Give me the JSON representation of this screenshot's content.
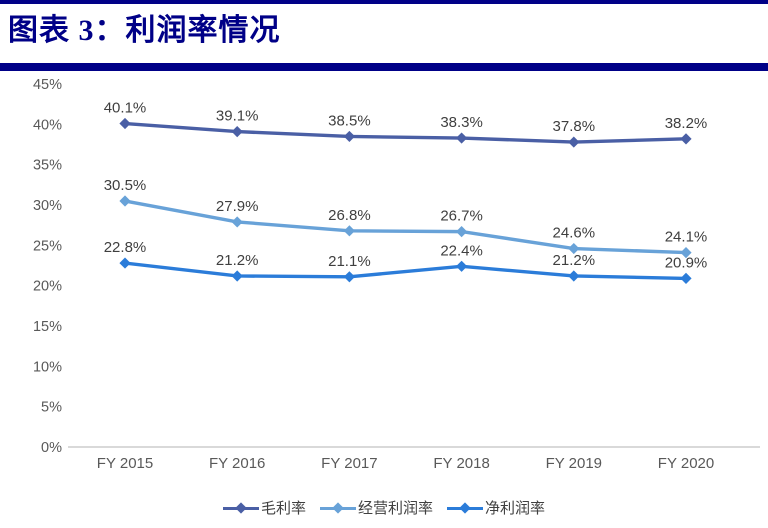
{
  "header": {
    "title": "图表 3：利润率情况",
    "accent_color": "#000087"
  },
  "chart_data": {
    "type": "line",
    "title": "利润率情况",
    "categories": [
      "FY 2015",
      "FY 2016",
      "FY 2017",
      "FY 2018",
      "FY 2019",
      "FY 2020"
    ],
    "series": [
      {
        "name": "毛利率",
        "color": "#4A5FA5",
        "values": [
          40.1,
          39.1,
          38.5,
          38.3,
          37.8,
          38.2
        ],
        "labels": [
          "40.1%",
          "39.1%",
          "38.5%",
          "38.3%",
          "37.8%",
          "38.2%"
        ]
      },
      {
        "name": "经营利润率",
        "color": "#68A2D8",
        "values": [
          30.5,
          27.9,
          26.8,
          26.7,
          24.6,
          24.1
        ],
        "labels": [
          "30.5%",
          "27.9%",
          "26.8%",
          "26.7%",
          "24.6%",
          "24.1%"
        ]
      },
      {
        "name": "净利润率",
        "color": "#2B7CD9",
        "values": [
          22.8,
          21.2,
          21.1,
          22.4,
          21.2,
          20.9
        ],
        "labels": [
          "22.8%",
          "21.2%",
          "21.1%",
          "22.4%",
          "21.2%",
          "20.9%"
        ]
      }
    ],
    "y_ticks": {
      "values": [
        0,
        5,
        10,
        15,
        20,
        25,
        30,
        35,
        40,
        45
      ],
      "labels": [
        "0%",
        "5%",
        "10%",
        "15%",
        "20%",
        "25%",
        "30%",
        "35%",
        "40%",
        "45%"
      ]
    },
    "ylim": [
      0,
      45
    ],
    "grid": false,
    "legend_position": "bottom",
    "colors": {
      "axis_line": "#D9D9D9",
      "tick_label": "#595959",
      "data_label": "#3F3F3F"
    }
  }
}
